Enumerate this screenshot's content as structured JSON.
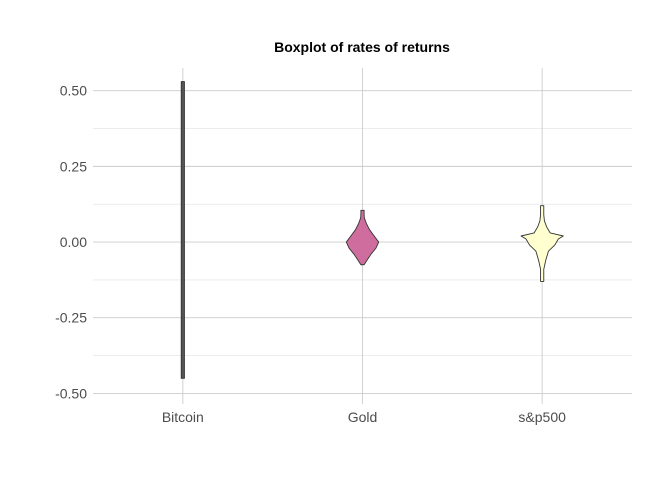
{
  "chart_data": {
    "type": "violin",
    "title": "Boxplot of rates of returns",
    "xlabel": "",
    "ylabel": "",
    "categories": [
      "Bitcoin",
      "Gold",
      "s&p500"
    ],
    "ylim": [
      -0.535,
      0.575
    ],
    "yticks": [
      0.5,
      0.25,
      0.0,
      -0.25,
      -0.5
    ],
    "ytick_labels": [
      "0.50",
      "0.25",
      "0.00",
      "-0.25",
      "-0.50"
    ],
    "grid": true,
    "legend": "none",
    "series": [
      {
        "category": "Bitcoin",
        "color": "#4d4d4d",
        "min": -0.45,
        "max": 0.53,
        "profile": [
          [
            -0.45,
            0.0
          ],
          [
            -0.4,
            0.0
          ],
          [
            -0.35,
            0.0
          ],
          [
            -0.3,
            0.001
          ],
          [
            -0.25,
            0.001
          ],
          [
            -0.2,
            0.001
          ],
          [
            -0.15,
            0.001
          ],
          [
            -0.1,
            0.002
          ],
          [
            -0.05,
            0.002
          ],
          [
            0.0,
            0.002
          ],
          [
            0.05,
            0.002
          ],
          [
            0.1,
            0.002
          ],
          [
            0.15,
            0.002
          ],
          [
            0.2,
            0.002
          ],
          [
            0.25,
            0.002
          ],
          [
            0.3,
            0.002
          ],
          [
            0.35,
            0.001
          ],
          [
            0.4,
            0.001
          ],
          [
            0.45,
            0.001
          ],
          [
            0.5,
            0.0
          ],
          [
            0.53,
            0.0
          ]
        ]
      },
      {
        "category": "Gold",
        "color": "#cc6699",
        "min": -0.075,
        "max": 0.105,
        "profile": [
          [
            -0.075,
            0.017
          ],
          [
            -0.06,
            0.05
          ],
          [
            -0.04,
            0.095
          ],
          [
            -0.02,
            0.15
          ],
          [
            0.0,
            0.18
          ],
          [
            0.02,
            0.13
          ],
          [
            0.04,
            0.08
          ],
          [
            0.06,
            0.045
          ],
          [
            0.08,
            0.02
          ],
          [
            0.095,
            0.007
          ],
          [
            0.105,
            0.0
          ]
        ]
      },
      {
        "category": "s&p500",
        "color": "#ffffcc",
        "min": -0.13,
        "max": 0.12,
        "profile": [
          [
            -0.13,
            0.0
          ],
          [
            -0.11,
            0.007
          ],
          [
            -0.09,
            0.015
          ],
          [
            -0.06,
            0.04
          ],
          [
            -0.03,
            0.07
          ],
          [
            -0.01,
            0.14
          ],
          [
            0.01,
            0.18
          ],
          [
            0.02,
            0.235
          ],
          [
            0.03,
            0.09
          ],
          [
            0.05,
            0.05
          ],
          [
            0.07,
            0.025
          ],
          [
            0.09,
            0.01
          ],
          [
            0.1,
            0.0075
          ],
          [
            0.12,
            0.0075
          ]
        ]
      }
    ]
  }
}
